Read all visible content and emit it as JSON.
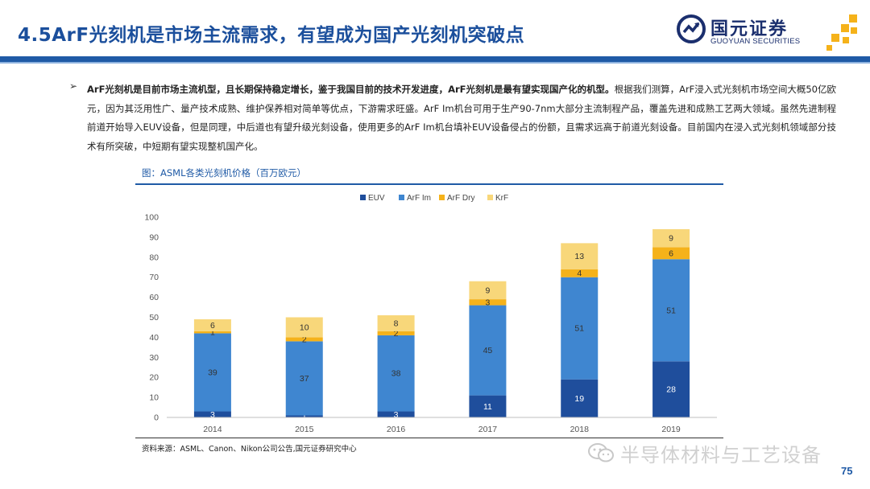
{
  "header": {
    "title": "4.5ArF光刻机是市场主流需求，有望成为国产光刻机突破点",
    "logo_cn": "国元证券",
    "logo_en": "GUOYUAN SECURITIES"
  },
  "body": {
    "bullet_lead": "ArF光刻机是目前市场主流机型，且长期保持稳定增长，鉴于我国目前的技术开发进度，",
    "bullet_bold": "ArF光刻机是最有望实现国产化的机型。",
    "bullet_rest": "根据我们测算，ArF浸入式光刻机市场空间大概50亿欧元，因为其泛用性广、量产技术成熟、维护保养相对简单等优点，下游需求旺盛。ArF Im机台可用于生产90-7nm大部分主流制程产品，覆盖先进和成熟工艺两大领域。虽然先进制程前道开始导入EUV设备，但是同理，中后道也有望升级光刻设备，使用更多的ArF Im机台填补EUV设备侵占的份额，且需求远高于前道光刻设备。目前国内在浸入式光刻机领域部分技术有所突破，中短期有望实现整机国产化。"
  },
  "chart_caption": "图：ASML各类光刻机价格（百万欧元）",
  "source_note": "资料来源：ASML、Canon、Nikon公司公告,国元证券研究中心",
  "watermark": "半导体材料与工艺设备",
  "page_number": "75",
  "colors": {
    "brand": "#1f5aa6",
    "EUV": "#1f4e9c",
    "ArF Im": "#3f86d0",
    "ArF Dry": "#f5b21a",
    "KrF": "#f8d77a"
  },
  "chart_data": {
    "type": "bar",
    "stacked": true,
    "categories": [
      "2014",
      "2015",
      "2016",
      "2017",
      "2018",
      "2019"
    ],
    "series": [
      {
        "name": "EUV",
        "values": [
          3,
          1,
          3,
          11,
          19,
          28
        ]
      },
      {
        "name": "ArF Im",
        "values": [
          39,
          37,
          38,
          45,
          51,
          51
        ]
      },
      {
        "name": "ArF Dry",
        "values": [
          1,
          2,
          2,
          3,
          4,
          6
        ]
      },
      {
        "name": "KrF",
        "values": [
          6,
          10,
          8,
          9,
          13,
          9
        ]
      }
    ],
    "ylim": [
      0,
      100
    ],
    "yticks": [
      "0",
      "10",
      "20",
      "30",
      "40",
      "50",
      "60",
      "70",
      "80",
      "90",
      "100"
    ],
    "legend_position": "top-center",
    "grid": false
  }
}
